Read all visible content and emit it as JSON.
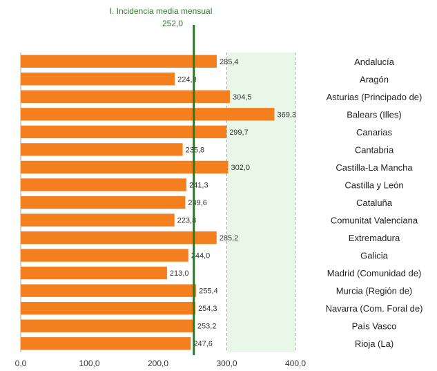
{
  "chart_data": {
    "type": "bar",
    "orientation": "horizontal",
    "categories": [
      "Andalucía",
      "Aragón",
      "Asturias (Principado de)",
      "Balears (Illes)",
      "Canarias",
      "Cantabria",
      "Castilla-La Mancha",
      "Castilla y León",
      "Cataluña",
      "Comunitat Valenciana",
      "Extremadura",
      "Galicia",
      "Madrid (Comunidad de)",
      "Murcia (Región de)",
      "Navarra (Com. Foral de)",
      "País Vasco",
      "Rioja (La)"
    ],
    "values": [
      285.4,
      224.3,
      304.5,
      369.3,
      299.7,
      235.8,
      302.0,
      241.3,
      239.6,
      223.8,
      285.2,
      244.0,
      213.0,
      255.4,
      254.3,
      253.2,
      247.6
    ],
    "value_labels": [
      "285,4",
      "224,3",
      "304,5",
      "369,3",
      "299,7",
      "235,8",
      "302,0",
      "241,3",
      "239,6",
      "223,8",
      "285,2",
      "244,0",
      "213,0",
      "255,4",
      "254,3",
      "253,2",
      "247,6"
    ],
    "x_ticks": [
      0,
      100,
      200,
      300,
      400
    ],
    "x_tick_labels": [
      "0,0",
      "100,0",
      "200,0",
      "300,0",
      "400,0"
    ],
    "xlim": [
      0,
      400
    ],
    "shaded_range": [
      300,
      400
    ],
    "reference_line": {
      "value": 252.0,
      "label": "I. Incidencia media mensual",
      "value_label": "252,0"
    },
    "grid": "vertical dashed at 300 and 400",
    "colors": {
      "bar": "#f47f1e",
      "reference_line": "#1e7d1e",
      "shaded_band": "#e8f7e8",
      "grid": "#aaaaaa"
    }
  }
}
